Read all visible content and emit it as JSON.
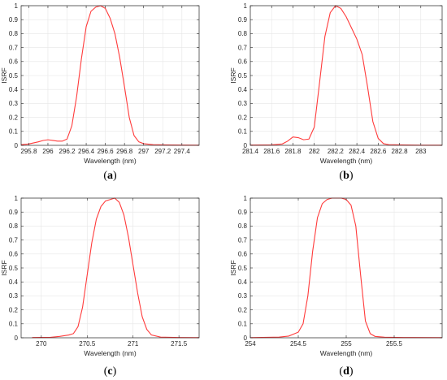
{
  "panels": [
    {
      "caption_open": "(",
      "caption_letter": "a",
      "caption_close": ")",
      "chart_data": {
        "type": "line",
        "xlabel": "Wavelength (nm)",
        "ylabel": "ISRF",
        "xlim": [
          295.72,
          297.58
        ],
        "ylim": [
          0,
          1
        ],
        "xticks": [
          295.8,
          296,
          296.2,
          296.4,
          296.6,
          296.8,
          297,
          297.2,
          297.4
        ],
        "xtick_labels": [
          "295.8",
          "296",
          "296.2",
          "296.4",
          "296.6",
          "296.8",
          "297",
          "297.2",
          "297.4"
        ],
        "yticks": [
          0,
          0.1,
          0.2,
          0.3,
          0.4,
          0.5,
          0.6,
          0.7,
          0.8,
          0.9,
          1
        ],
        "ytick_labels": [
          "0",
          "0.1",
          "0.2",
          "0.3",
          "0.4",
          "0.5",
          "0.6",
          "0.7",
          "0.8",
          "0.9",
          "1"
        ],
        "grid": true,
        "series": [
          {
            "color": "#ff3b3b",
            "x": [
              295.72,
              295.8,
              295.9,
              295.95,
              296.0,
              296.05,
              296.1,
              296.15,
              296.2,
              296.25,
              296.3,
              296.35,
              296.4,
              296.45,
              296.5,
              296.55,
              296.6,
              296.65,
              296.7,
              296.75,
              296.8,
              296.85,
              296.9,
              296.95,
              297.0,
              297.1,
              297.2,
              297.4,
              297.58
            ],
            "y": [
              0.005,
              0.01,
              0.025,
              0.035,
              0.04,
              0.035,
              0.03,
              0.03,
              0.045,
              0.14,
              0.35,
              0.62,
              0.85,
              0.96,
              0.99,
              1.0,
              0.98,
              0.91,
              0.8,
              0.63,
              0.42,
              0.2,
              0.07,
              0.025,
              0.012,
              0.005,
              0.003,
              0.002,
              0.001
            ]
          }
        ]
      }
    },
    {
      "caption_open": "(",
      "caption_letter": "b",
      "caption_close": ")",
      "chart_data": {
        "type": "line",
        "xlabel": "Wavelength (nm)",
        "ylabel": "ISRF",
        "xlim": [
          281.4,
          283.2
        ],
        "ylim": [
          0,
          1
        ],
        "xticks": [
          281.4,
          281.6,
          281.8,
          282,
          282.2,
          282.4,
          282.6,
          282.8,
          283
        ],
        "xtick_labels": [
          "281.4",
          "281.6",
          "281.8",
          "282",
          "282.2",
          "282.4",
          "282.6",
          "282.8",
          "283"
        ],
        "yticks": [
          0,
          0.1,
          0.2,
          0.3,
          0.4,
          0.5,
          0.6,
          0.7,
          0.8,
          0.9,
          1
        ],
        "ytick_labels": [
          "0",
          "0.1",
          "0.2",
          "0.3",
          "0.4",
          "0.5",
          "0.6",
          "0.7",
          "0.8",
          "0.9",
          "1"
        ],
        "grid": true,
        "series": [
          {
            "color": "#ff3b3b",
            "x": [
              281.4,
              281.6,
              281.7,
              281.75,
              281.8,
              281.85,
              281.9,
              281.95,
              282.0,
              282.05,
              282.1,
              282.15,
              282.2,
              282.25,
              282.3,
              282.35,
              282.4,
              282.45,
              282.5,
              282.55,
              282.6,
              282.65,
              282.7,
              282.8,
              283.0,
              283.2
            ],
            "y": [
              0.002,
              0.003,
              0.01,
              0.03,
              0.06,
              0.055,
              0.04,
              0.045,
              0.13,
              0.45,
              0.78,
              0.95,
              1.0,
              0.98,
              0.92,
              0.84,
              0.76,
              0.65,
              0.42,
              0.17,
              0.05,
              0.012,
              0.005,
              0.003,
              0.001,
              0.001
            ]
          }
        ]
      }
    },
    {
      "caption_open": "(",
      "caption_letter": "c",
      "caption_close": ")",
      "chart_data": {
        "type": "line",
        "xlabel": "Wavelength (nm)",
        "ylabel": "ISRF",
        "xlim": [
          269.78,
          271.72
        ],
        "ylim": [
          0,
          1
        ],
        "xticks": [
          270,
          270.5,
          271,
          271.5
        ],
        "xtick_labels": [
          "270",
          "270.5",
          "271",
          "271.5"
        ],
        "yticks": [
          0,
          0.1,
          0.2,
          0.3,
          0.4,
          0.5,
          0.6,
          0.7,
          0.8,
          0.9,
          1
        ],
        "ytick_labels": [
          "0",
          "0.1",
          "0.2",
          "0.3",
          "0.4",
          "0.5",
          "0.6",
          "0.7",
          "0.8",
          "0.9",
          "1"
        ],
        "grid": true,
        "series": [
          {
            "color": "#ff3b3b",
            "x": [
              269.9,
              270.1,
              270.2,
              270.3,
              270.35,
              270.4,
              270.45,
              270.5,
              270.55,
              270.6,
              270.65,
              270.7,
              270.75,
              270.8,
              270.85,
              270.9,
              270.95,
              271.0,
              271.05,
              271.1,
              271.15,
              271.2,
              271.3,
              271.5,
              271.72
            ],
            "y": [
              0.002,
              0.003,
              0.01,
              0.02,
              0.03,
              0.08,
              0.22,
              0.45,
              0.68,
              0.85,
              0.94,
              0.98,
              0.99,
              1.0,
              0.97,
              0.88,
              0.72,
              0.52,
              0.32,
              0.15,
              0.06,
              0.02,
              0.005,
              0.002,
              0.001
            ]
          }
        ]
      }
    },
    {
      "caption_open": "(",
      "caption_letter": "d",
      "caption_close": ")",
      "chart_data": {
        "type": "line",
        "xlabel": "Wavelength (nm)",
        "ylabel": "ISRF",
        "xlim": [
          254,
          256
        ],
        "ylim": [
          0,
          1
        ],
        "xticks": [
          254,
          254.5,
          255,
          255.5
        ],
        "xtick_labels": [
          "254",
          "254.5",
          "255",
          "255.5"
        ],
        "yticks": [
          0,
          0.1,
          0.2,
          0.3,
          0.4,
          0.5,
          0.6,
          0.7,
          0.8,
          0.9,
          1
        ],
        "ytick_labels": [
          "0",
          "0.1",
          "0.2",
          "0.3",
          "0.4",
          "0.5",
          "0.6",
          "0.7",
          "0.8",
          "0.9",
          "1"
        ],
        "grid": true,
        "series": [
          {
            "color": "#ff3b3b",
            "x": [
              254.0,
              254.3,
              254.4,
              254.5,
              254.55,
              254.6,
              254.65,
              254.7,
              254.75,
              254.8,
              254.85,
              254.9,
              254.95,
              255.0,
              255.05,
              255.1,
              255.15,
              255.2,
              255.25,
              255.3,
              255.4,
              255.6,
              256.0
            ],
            "y": [
              0.001,
              0.005,
              0.012,
              0.04,
              0.1,
              0.3,
              0.62,
              0.86,
              0.96,
              0.99,
              1.0,
              1.0,
              1.0,
              0.99,
              0.95,
              0.8,
              0.45,
              0.12,
              0.03,
              0.01,
              0.004,
              0.002,
              0.001
            ]
          }
        ]
      }
    }
  ]
}
